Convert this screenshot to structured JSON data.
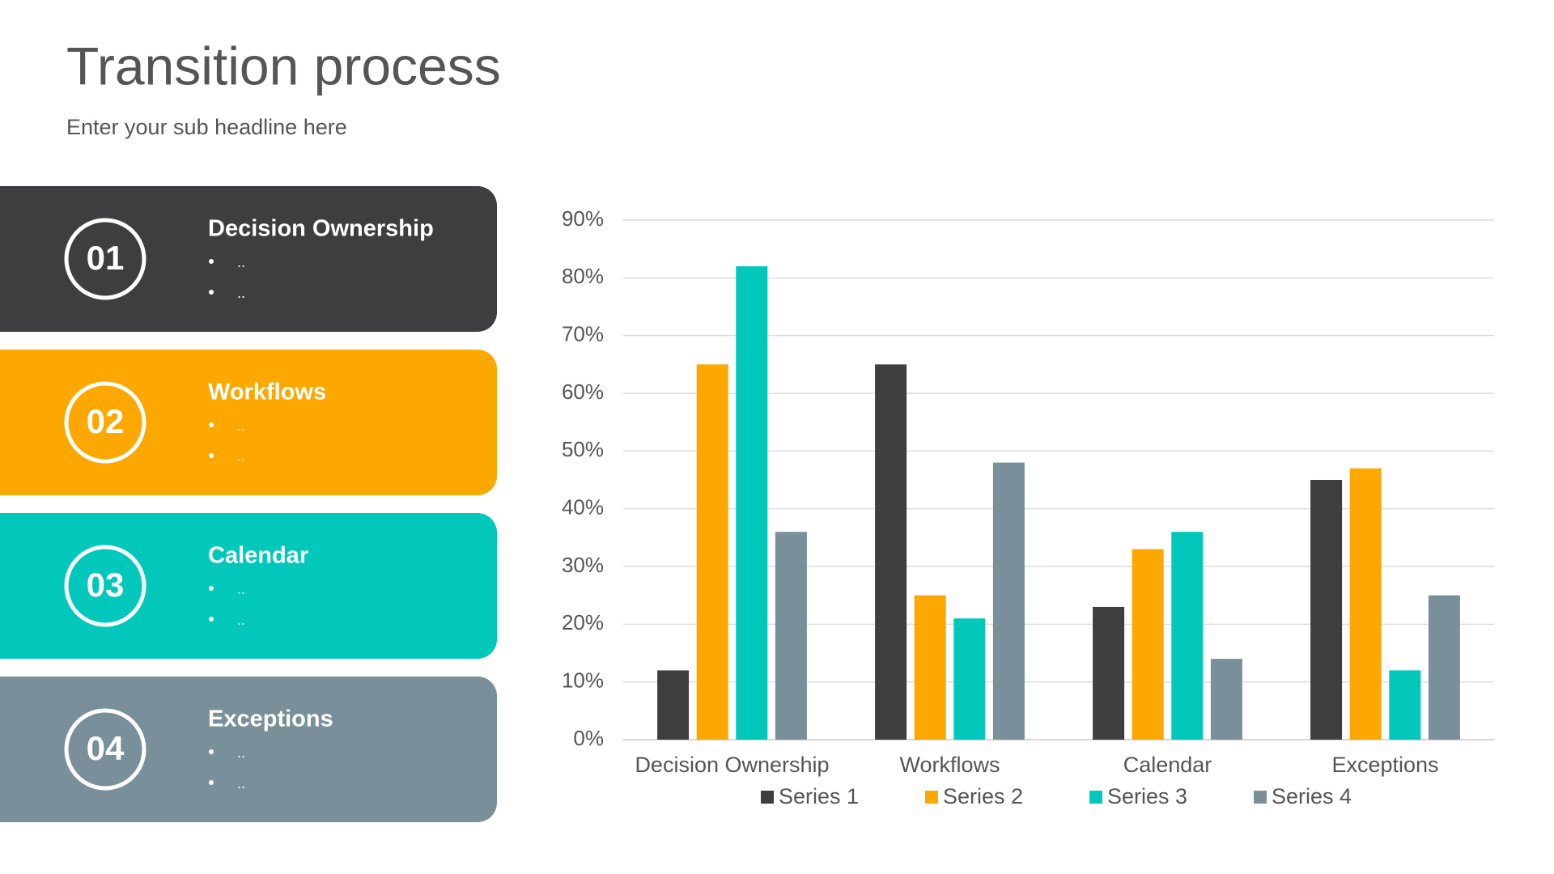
{
  "header": {
    "title": "Transition process",
    "subtitle": "Enter your sub headline here"
  },
  "cards": [
    {
      "number": "01",
      "title": "Decision Ownership",
      "bullets": [
        "..",
        ".."
      ],
      "color": "#3e3e40"
    },
    {
      "number": "02",
      "title": "Workflows",
      "bullets": [
        "..",
        ".."
      ],
      "color": "#fca800"
    },
    {
      "number": "03",
      "title": "Calendar",
      "bullets": [
        "..",
        ".."
      ],
      "color": "#02c8bb"
    },
    {
      "number": "04",
      "title": "Exceptions",
      "bullets": [
        "..",
        ".."
      ],
      "color": "#79909a"
    }
  ],
  "chart_data": {
    "type": "bar",
    "categories": [
      "Decision Ownership",
      "Workflows",
      "Calendar",
      "Exceptions"
    ],
    "series": [
      {
        "name": "Series 1",
        "color": "#3e3e40",
        "values": [
          12,
          65,
          23,
          45
        ]
      },
      {
        "name": "Series 2",
        "color": "#fca800",
        "values": [
          65,
          25,
          33,
          47
        ]
      },
      {
        "name": "Series 3",
        "color": "#02c8bb",
        "values": [
          82,
          21,
          36,
          12
        ]
      },
      {
        "name": "Series 4",
        "color": "#79909a",
        "values": [
          36,
          48,
          14,
          25
        ]
      }
    ],
    "ylim": [
      0,
      90
    ],
    "yticks": [
      {
        "value": 0,
        "label": "0%"
      },
      {
        "value": 10,
        "label": "10%"
      },
      {
        "value": 20,
        "label": "20%"
      },
      {
        "value": 30,
        "label": "30%"
      },
      {
        "value": 40,
        "label": "40%"
      },
      {
        "value": 50,
        "label": "50%"
      },
      {
        "value": 60,
        "label": "60%"
      },
      {
        "value": 70,
        "label": "70%"
      },
      {
        "value": 80,
        "label": "80%"
      },
      {
        "value": 90,
        "label": "90%"
      }
    ],
    "grid": true,
    "legend": "bottom"
  }
}
